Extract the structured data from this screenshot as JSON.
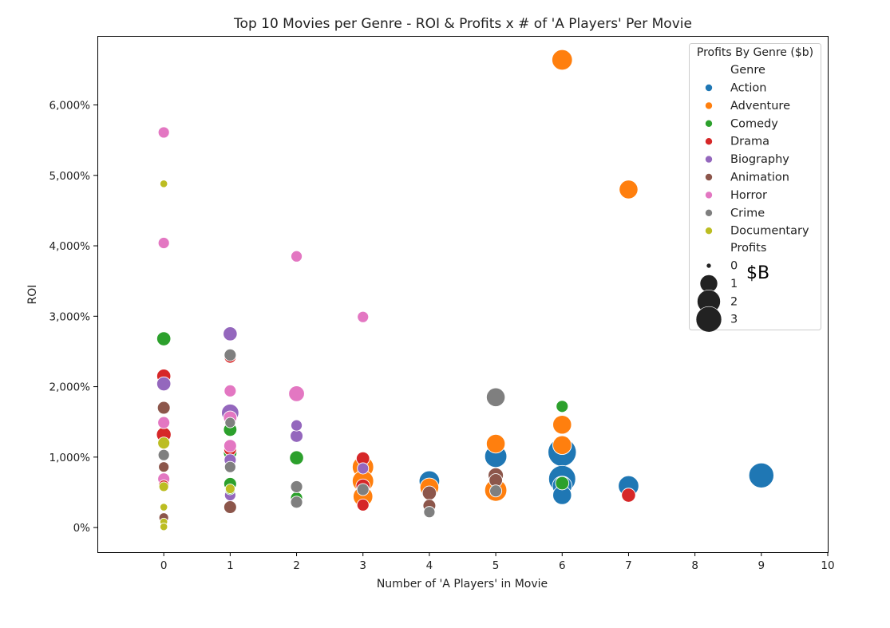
{
  "chart_data": {
    "type": "scatter",
    "title": "Top 10 Movies per Genre - ROI & Profits x # of  'A Players' Per Movie",
    "xlabel": "Number of   'A Players' in Movie",
    "ylabel": "ROI",
    "xlim": [
      -1,
      10
    ],
    "ylim": [
      -350,
      6980
    ],
    "x_ticks": [
      0,
      1,
      2,
      3,
      4,
      5,
      6,
      7,
      8,
      9,
      10
    ],
    "x_tick_labels": [
      "0",
      "1",
      "2",
      "3",
      "4",
      "5",
      "6",
      "7",
      "8",
      "9",
      "10"
    ],
    "y_ticks": [
      0,
      1000,
      2000,
      3000,
      4000,
      5000,
      6000
    ],
    "y_tick_labels": [
      "0%",
      "1,000%",
      "2,000%",
      "3,000%",
      "4,000%",
      "5,000%",
      "6,000%"
    ],
    "grid": false,
    "legend": {
      "title": "Profits By Genre ($b)",
      "placement": "top-right",
      "hue_title": "Genre",
      "size_title": "Profits",
      "size_entries": [
        {
          "label": "0",
          "value": 0
        },
        {
          "label": "1",
          "value": 1
        },
        {
          "label": "2",
          "value": 2
        },
        {
          "label": "3",
          "value": 3
        }
      ]
    },
    "annotation": "$B",
    "series": [
      {
        "name": "Action",
        "color": "#1f77b4",
        "points": [
          {
            "x": 4,
            "y": 660,
            "profit": 1.1
          },
          {
            "x": 5,
            "y": 1010,
            "profit": 1.3
          },
          {
            "x": 6,
            "y": 1070,
            "profit": 2.2
          },
          {
            "x": 6,
            "y": 690,
            "profit": 2.0
          },
          {
            "x": 6,
            "y": 590,
            "profit": 1.0
          },
          {
            "x": 6,
            "y": 460,
            "profit": 0.9
          },
          {
            "x": 7,
            "y": 590,
            "profit": 1.1
          },
          {
            "x": 9,
            "y": 740,
            "profit": 1.7
          }
        ]
      },
      {
        "name": "Adventure",
        "color": "#ff7f0e",
        "points": [
          {
            "x": 3,
            "y": 860,
            "profit": 1.2
          },
          {
            "x": 3,
            "y": 660,
            "profit": 1.2
          },
          {
            "x": 3,
            "y": 440,
            "profit": 1.0
          },
          {
            "x": 4,
            "y": 570,
            "profit": 0.9
          },
          {
            "x": 5,
            "y": 1190,
            "profit": 0.9
          },
          {
            "x": 5,
            "y": 530,
            "profit": 1.3
          },
          {
            "x": 6,
            "y": 6640,
            "profit": 1.1
          },
          {
            "x": 6,
            "y": 1460,
            "profit": 0.9
          },
          {
            "x": 6,
            "y": 1170,
            "profit": 0.9
          },
          {
            "x": 7,
            "y": 4800,
            "profit": 0.9
          }
        ]
      },
      {
        "name": "Comedy",
        "color": "#2ca02c",
        "points": [
          {
            "x": 0,
            "y": 2680,
            "profit": 0.45
          },
          {
            "x": 1,
            "y": 1390,
            "profit": 0.4
          },
          {
            "x": 1,
            "y": 1060,
            "profit": 0.4
          },
          {
            "x": 1,
            "y": 620,
            "profit": 0.35
          },
          {
            "x": 1,
            "y": 540,
            "profit": 0.2
          },
          {
            "x": 2,
            "y": 990,
            "profit": 0.45
          },
          {
            "x": 2,
            "y": 420,
            "profit": 0.3
          },
          {
            "x": 6,
            "y": 1720,
            "profit": 0.3
          },
          {
            "x": 6,
            "y": 630,
            "profit": 0.4
          }
        ]
      },
      {
        "name": "Drama",
        "color": "#d62728",
        "points": [
          {
            "x": 0,
            "y": 2150,
            "profit": 0.45
          },
          {
            "x": 0,
            "y": 1320,
            "profit": 0.5
          },
          {
            "x": 0,
            "y": 600,
            "profit": 0.2
          },
          {
            "x": 1,
            "y": 2420,
            "profit": 0.3
          },
          {
            "x": 1,
            "y": 1110,
            "profit": 0.35
          },
          {
            "x": 3,
            "y": 980,
            "profit": 0.4
          },
          {
            "x": 3,
            "y": 590,
            "profit": 0.45
          },
          {
            "x": 3,
            "y": 320,
            "profit": 0.3
          },
          {
            "x": 7,
            "y": 460,
            "profit": 0.45
          }
        ]
      },
      {
        "name": "Biography",
        "color": "#9467bd",
        "points": [
          {
            "x": 0,
            "y": 2040,
            "profit": 0.45
          },
          {
            "x": 1,
            "y": 2750,
            "profit": 0.45
          },
          {
            "x": 1,
            "y": 1630,
            "profit": 0.75
          },
          {
            "x": 1,
            "y": 960,
            "profit": 0.3
          },
          {
            "x": 1,
            "y": 460,
            "profit": 0.25
          },
          {
            "x": 2,
            "y": 1450,
            "profit": 0.25
          },
          {
            "x": 2,
            "y": 1300,
            "profit": 0.35
          },
          {
            "x": 3,
            "y": 840,
            "profit": 0.25
          }
        ]
      },
      {
        "name": "Animation",
        "color": "#8c564b",
        "points": [
          {
            "x": 0,
            "y": 1700,
            "profit": 0.35
          },
          {
            "x": 0,
            "y": 860,
            "profit": 0.2
          },
          {
            "x": 0,
            "y": 140,
            "profit": 0.15
          },
          {
            "x": 1,
            "y": 290,
            "profit": 0.35
          },
          {
            "x": 2,
            "y": 580,
            "profit": 0.35
          },
          {
            "x": 4,
            "y": 490,
            "profit": 0.45
          },
          {
            "x": 4,
            "y": 310,
            "profit": 0.35
          },
          {
            "x": 5,
            "y": 740,
            "profit": 0.55
          },
          {
            "x": 5,
            "y": 670,
            "profit": 0.4
          }
        ]
      },
      {
        "name": "Horror",
        "color": "#e377c2",
        "points": [
          {
            "x": 0,
            "y": 5610,
            "profit": 0.25
          },
          {
            "x": 0,
            "y": 4040,
            "profit": 0.25
          },
          {
            "x": 0,
            "y": 1490,
            "profit": 0.3
          },
          {
            "x": 0,
            "y": 690,
            "profit": 0.3
          },
          {
            "x": 1,
            "y": 1940,
            "profit": 0.3
          },
          {
            "x": 1,
            "y": 1560,
            "profit": 0.4
          },
          {
            "x": 1,
            "y": 1160,
            "profit": 0.35
          },
          {
            "x": 2,
            "y": 3850,
            "profit": 0.25
          },
          {
            "x": 2,
            "y": 1900,
            "profit": 0.6
          },
          {
            "x": 3,
            "y": 2990,
            "profit": 0.25
          }
        ]
      },
      {
        "name": "Crime",
        "color": "#7f7f7f",
        "points": [
          {
            "x": 0,
            "y": 1030,
            "profit": 0.25
          },
          {
            "x": 1,
            "y": 2450,
            "profit": 0.3
          },
          {
            "x": 1,
            "y": 1490,
            "profit": 0.2
          },
          {
            "x": 1,
            "y": 860,
            "profit": 0.25
          },
          {
            "x": 2,
            "y": 580,
            "profit": 0.3
          },
          {
            "x": 2,
            "y": 360,
            "profit": 0.3
          },
          {
            "x": 3,
            "y": 540,
            "profit": 0.3
          },
          {
            "x": 4,
            "y": 220,
            "profit": 0.25
          },
          {
            "x": 5,
            "y": 1850,
            "profit": 0.9
          },
          {
            "x": 5,
            "y": 520,
            "profit": 0.3
          }
        ]
      },
      {
        "name": "Documentary",
        "color": "#bcbd22",
        "points": [
          {
            "x": 0,
            "y": 4880,
            "profit": 0.05
          },
          {
            "x": 0,
            "y": 1200,
            "profit": 0.3
          },
          {
            "x": 0,
            "y": 580,
            "profit": 0.15
          },
          {
            "x": 0,
            "y": 290,
            "profit": 0.05
          },
          {
            "x": 0,
            "y": 80,
            "profit": 0.05
          },
          {
            "x": 0,
            "y": 10,
            "profit": 0.05
          },
          {
            "x": 1,
            "y": 550,
            "profit": 0.15
          }
        ]
      }
    ]
  }
}
